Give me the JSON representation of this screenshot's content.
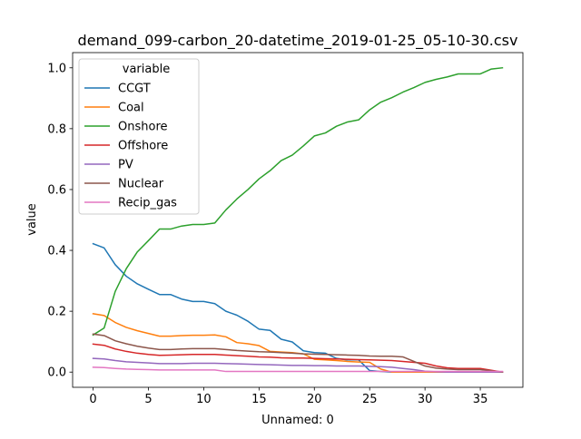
{
  "chart_data": {
    "type": "line",
    "title": "demand_099-carbon_20-datetime_2019-01-25_05-10-30.csv",
    "xlabel": "Unnamed: 0",
    "ylabel": "value",
    "xlim": [
      -1.85,
      38.85
    ],
    "ylim": [
      -0.05,
      1.05
    ],
    "x_ticks": [
      0,
      5,
      10,
      15,
      20,
      25,
      30,
      35
    ],
    "y_ticks": [
      0.0,
      0.2,
      0.4,
      0.6,
      0.8,
      1.0
    ],
    "x_tick_labels": [
      "0",
      "5",
      "10",
      "15",
      "20",
      "25",
      "30",
      "35"
    ],
    "y_tick_labels": [
      "0.0",
      "0.2",
      "0.4",
      "0.6",
      "0.8",
      "1.0"
    ],
    "grid": false,
    "legend": {
      "title": "variable",
      "placement": "top-left"
    },
    "x": [
      0,
      1,
      2,
      3,
      4,
      5,
      6,
      7,
      8,
      9,
      10,
      11,
      12,
      13,
      14,
      15,
      16,
      17,
      18,
      19,
      20,
      21,
      22,
      23,
      24,
      25,
      26,
      27,
      28,
      29,
      30,
      31,
      32,
      33,
      34,
      35,
      36,
      37
    ],
    "series": [
      {
        "name": "CCGT",
        "color": "#1f77b4",
        "values": [
          0.422,
          0.408,
          0.353,
          0.315,
          0.29,
          0.272,
          0.255,
          0.255,
          0.24,
          0.232,
          0.232,
          0.225,
          0.2,
          0.187,
          0.167,
          0.141,
          0.137,
          0.108,
          0.099,
          0.07,
          0.064,
          0.062,
          0.045,
          0.04,
          0.04,
          0.005,
          0.002,
          0.0,
          0.0,
          0.0,
          0.0,
          0.0,
          0.0,
          0.0,
          0.0,
          0.0,
          0.0,
          0.0
        ]
      },
      {
        "name": "Coal",
        "color": "#ff7f0e",
        "values": [
          0.192,
          0.186,
          0.163,
          0.147,
          0.136,
          0.127,
          0.118,
          0.118,
          0.12,
          0.121,
          0.121,
          0.122,
          0.116,
          0.097,
          0.093,
          0.087,
          0.068,
          0.066,
          0.064,
          0.06,
          0.042,
          0.04,
          0.038,
          0.035,
          0.033,
          0.032,
          0.01,
          0.0,
          0.0,
          0.0,
          0.0,
          0.0,
          0.0,
          0.0,
          0.0,
          0.0,
          0.0,
          0.0
        ]
      },
      {
        "name": "Onshore",
        "color": "#2ca02c",
        "values": [
          0.122,
          0.145,
          0.265,
          0.34,
          0.395,
          0.432,
          0.47,
          0.47,
          0.48,
          0.485,
          0.485,
          0.49,
          0.533,
          0.569,
          0.6,
          0.635,
          0.662,
          0.695,
          0.713,
          0.743,
          0.776,
          0.786,
          0.808,
          0.822,
          0.829,
          0.862,
          0.887,
          0.902,
          0.92,
          0.935,
          0.952,
          0.962,
          0.97,
          0.98,
          0.98,
          0.98,
          0.996,
          1.0
        ]
      },
      {
        "name": "Offshore",
        "color": "#d62728",
        "values": [
          0.092,
          0.088,
          0.076,
          0.068,
          0.062,
          0.058,
          0.055,
          0.056,
          0.057,
          0.058,
          0.058,
          0.058,
          0.056,
          0.054,
          0.052,
          0.05,
          0.049,
          0.047,
          0.046,
          0.046,
          0.045,
          0.044,
          0.043,
          0.042,
          0.041,
          0.04,
          0.039,
          0.038,
          0.035,
          0.032,
          0.029,
          0.02,
          0.014,
          0.012,
          0.012,
          0.012,
          0.006,
          0.0
        ]
      },
      {
        "name": "PV",
        "color": "#9467bd",
        "values": [
          0.045,
          0.043,
          0.038,
          0.034,
          0.032,
          0.03,
          0.028,
          0.028,
          0.028,
          0.029,
          0.029,
          0.029,
          0.028,
          0.027,
          0.026,
          0.025,
          0.024,
          0.023,
          0.022,
          0.022,
          0.021,
          0.021,
          0.02,
          0.02,
          0.02,
          0.019,
          0.018,
          0.016,
          0.012,
          0.008,
          0.003,
          0.001,
          0.0,
          0.0,
          0.0,
          0.0,
          0.0,
          0.0
        ]
      },
      {
        "name": "Nuclear",
        "color": "#8c564b",
        "values": [
          0.125,
          0.12,
          0.103,
          0.093,
          0.085,
          0.079,
          0.074,
          0.074,
          0.076,
          0.077,
          0.077,
          0.077,
          0.074,
          0.071,
          0.069,
          0.067,
          0.066,
          0.064,
          0.062,
          0.06,
          0.059,
          0.058,
          0.057,
          0.056,
          0.055,
          0.053,
          0.052,
          0.052,
          0.05,
          0.035,
          0.02,
          0.013,
          0.01,
          0.008,
          0.008,
          0.008,
          0.004,
          0.0
        ]
      },
      {
        "name": "Recip_gas",
        "color": "#e377c2",
        "values": [
          0.016,
          0.015,
          0.012,
          0.01,
          0.009,
          0.008,
          0.007,
          0.007,
          0.007,
          0.007,
          0.007,
          0.007,
          0.002,
          0.002,
          0.002,
          0.002,
          0.002,
          0.002,
          0.002,
          0.002,
          0.002,
          0.002,
          0.002,
          0.002,
          0.002,
          0.002,
          0.002,
          0.002,
          0.002,
          0.002,
          0.002,
          0.002,
          0.002,
          0.002,
          0.002,
          0.002,
          0.002,
          0.002
        ]
      }
    ]
  }
}
